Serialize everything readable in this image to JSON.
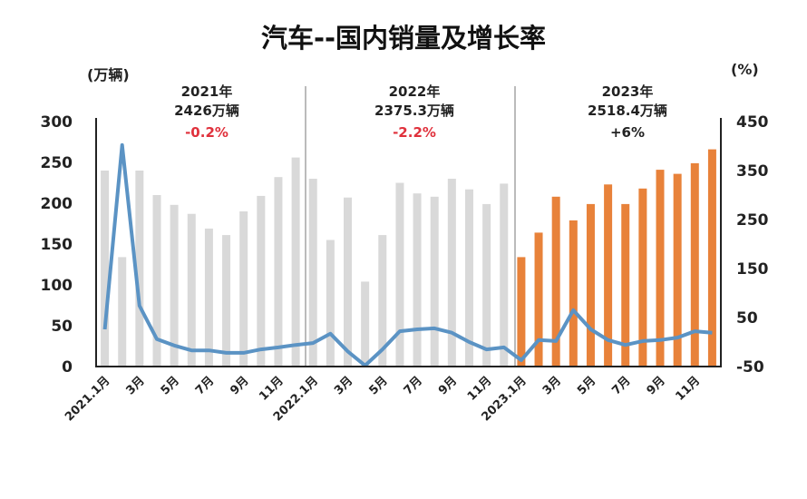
{
  "chart_data": {
    "type": "bar",
    "title": "汽车--国内销量及增长率",
    "ylabel_left": "(万辆)",
    "ylabel_right": "(%)",
    "ylim_left": [
      0,
      300
    ],
    "ylim_right": [
      -50,
      450
    ],
    "yticks_left": [
      "300",
      "250",
      "200",
      "150",
      "100",
      "50",
      "0"
    ],
    "yticks_right": [
      "450",
      "350",
      "250",
      "150",
      "50",
      "-50"
    ],
    "grid": false,
    "categories": [
      "2021.1月",
      "2021.2月",
      "2021.3月",
      "2021.4月",
      "2021.5月",
      "2021.6月",
      "2021.7月",
      "2021.8月",
      "2021.9月",
      "2021.10月",
      "2021.11月",
      "2021.12月",
      "2022.1月",
      "2022.2月",
      "2022.3月",
      "2022.4月",
      "2022.5月",
      "2022.6月",
      "2022.7月",
      "2022.8月",
      "2022.9月",
      "2022.10月",
      "2022.11月",
      "2022.12月",
      "2023.1月",
      "2023.2月",
      "2023.3月",
      "2023.4月",
      "2023.5月",
      "2023.6月",
      "2023.7月",
      "2023.8月",
      "2023.9月",
      "2023.10月",
      "2023.11月",
      "2023.12月"
    ],
    "xtick_labels": [
      "2021.1月",
      "3月",
      "5月",
      "7月",
      "9月",
      "11月",
      "2022.1月",
      "3月",
      "5月",
      "7月",
      "9月",
      "11月",
      "2023.1月",
      "3月",
      "5月",
      "7月",
      "9月",
      "11月"
    ],
    "series": [
      {
        "type": "bar",
        "axis": "left",
        "values": [
          240,
          134,
          240,
          210,
          198,
          187,
          169,
          161,
          190,
          209,
          232,
          256,
          230,
          155,
          207,
          104,
          161,
          225,
          212,
          208,
          230,
          217,
          199,
          224,
          134,
          164,
          208,
          179,
          199,
          223,
          199,
          218,
          241,
          236,
          249,
          266
        ]
      },
      {
        "type": "line",
        "axis": "right",
        "values": [
          26,
          402,
          74,
          6,
          -7,
          -17,
          -17,
          -22,
          -22,
          -15,
          -11,
          -6,
          -2,
          17,
          -19,
          -48,
          -15,
          22,
          26,
          28,
          19,
          0,
          -15,
          -11,
          -37,
          4,
          2,
          65,
          26,
          4,
          -6,
          2,
          4,
          9,
          22,
          19
        ]
      }
    ],
    "colors": {
      "bar_2021_2022": "#d9d9d9",
      "bar_2023": "#e8823a",
      "line": "#5b93c4",
      "negative_growth": "#e0313c"
    },
    "annotations": [
      {
        "year": "2021年",
        "total": "2426万辆",
        "growth": "-0.2%",
        "growth_color": "#e0313c"
      },
      {
        "year": "2022年",
        "total": "2375.3万辆",
        "growth": "-2.2%",
        "growth_color": "#e0313c"
      },
      {
        "year": "2023年",
        "total": "2518.4万辆",
        "growth": "+6%",
        "growth_color": "#222222"
      }
    ]
  }
}
